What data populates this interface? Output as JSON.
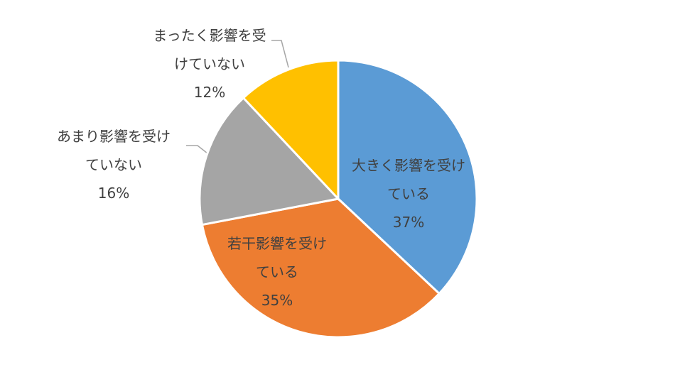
{
  "chart_data": {
    "type": "pie",
    "categories": [
      "大きく影響を受けている",
      "若干影響を受けている",
      "あまり影響を受けていない",
      "まったく影響を受けていない"
    ],
    "values": [
      37,
      35,
      16,
      12
    ],
    "value_labels": [
      "37%",
      "35%",
      "16%",
      "12%"
    ],
    "colors": [
      "#5b9bd5",
      "#ed7d31",
      "#a5a5a5",
      "#ffc000"
    ]
  }
}
